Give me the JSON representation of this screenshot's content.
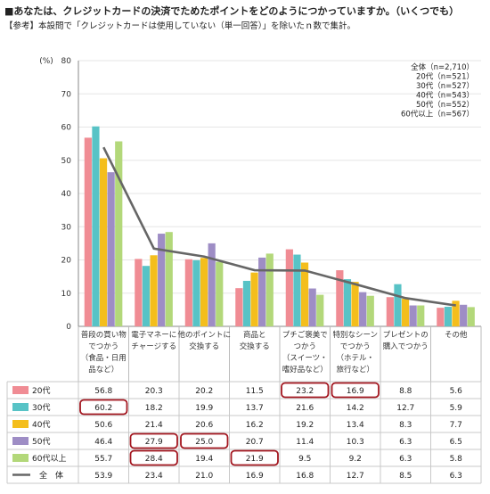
{
  "header": {
    "title": "■あなたは、クレジットカードの決済でためたポイントをどのようにつかっていますか。（いくつでも）",
    "subtitle": "【参考】本設問で「クレジットカードは使用していない（単一回答）」を除いたｎ数で集計。"
  },
  "chart_data": {
    "type": "bar",
    "ylabel": "(%)",
    "ylim": [
      0,
      80
    ],
    "yticks": [
      0,
      10,
      20,
      30,
      40,
      50,
      60,
      70,
      80
    ],
    "categories": [
      [
        "普段の買い物",
        "でつかう",
        "（食品・日用",
        "品など）"
      ],
      [
        "電子マネーに",
        "チャージする"
      ],
      [
        "他のポイントに",
        "交換する"
      ],
      [
        "商品と",
        "交換する"
      ],
      [
        "プチご褒美で",
        "つかう",
        "（スイーツ・",
        "嗜好品など）"
      ],
      [
        "特別なシーン",
        "でつかう",
        "（ホテル・",
        "旅行など）"
      ],
      [
        "プレゼントの",
        "購入でつかう"
      ],
      [
        "その他"
      ]
    ],
    "series": [
      {
        "name": "20代",
        "color": "#F08C94",
        "values": [
          56.8,
          20.3,
          20.2,
          11.5,
          23.2,
          16.9,
          8.8,
          5.6
        ]
      },
      {
        "name": "30代",
        "color": "#58C3C6",
        "values": [
          60.2,
          18.2,
          19.9,
          13.7,
          21.6,
          14.2,
          12.7,
          5.9
        ]
      },
      {
        "name": "40代",
        "color": "#F4BE1C",
        "values": [
          50.6,
          21.4,
          20.6,
          16.2,
          19.2,
          13.4,
          8.3,
          7.7
        ]
      },
      {
        "name": "50代",
        "color": "#9E8DC5",
        "values": [
          46.4,
          27.9,
          25.0,
          20.7,
          11.4,
          10.3,
          6.3,
          6.5
        ]
      },
      {
        "name": "60代以上",
        "color": "#B3D87A",
        "values": [
          55.7,
          28.4,
          19.4,
          21.9,
          9.5,
          9.2,
          6.3,
          5.8
        ]
      }
    ],
    "total": {
      "name": "全　体",
      "color": "#666666",
      "values": [
        53.9,
        23.4,
        21.0,
        16.9,
        16.8,
        12.7,
        8.5,
        6.3
      ]
    },
    "legend_n": [
      "全体（n=2,710）",
      "20代（n=521）",
      "30代（n=527）",
      "40代（n=543）",
      "50代（n=552）",
      "60代以上（n=567）"
    ],
    "legend_position": "top-right",
    "grid": true,
    "highlighted_cells": [
      {
        "series": "30代",
        "category_index": 0
      },
      {
        "series": "50代",
        "category_index": 1
      },
      {
        "series": "60代以上",
        "category_index": 1
      },
      {
        "series": "50代",
        "category_index": 2
      },
      {
        "series": "60代以上",
        "category_index": 3
      },
      {
        "series": "20代",
        "category_index": 4
      },
      {
        "series": "20代",
        "category_index": 5
      }
    ]
  }
}
